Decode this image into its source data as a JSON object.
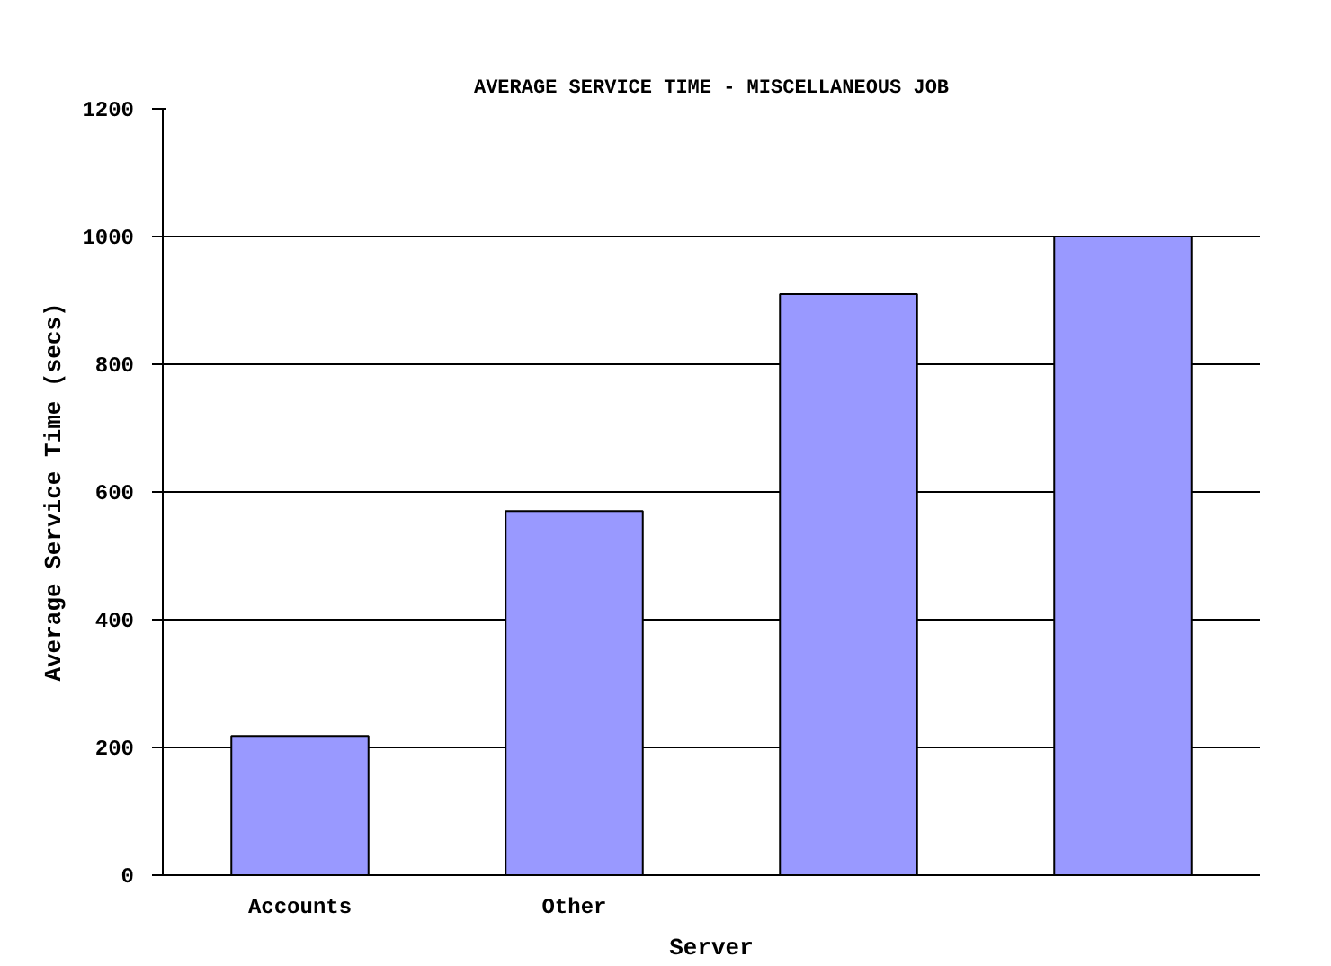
{
  "chart_data": {
    "type": "bar",
    "title": "AVERAGE SERVICE TIME - MISCELLANEOUS JOB",
    "xlabel": "Server",
    "ylabel": "Average Service Time (secs)",
    "categories": [
      "Accounts",
      "Other",
      null,
      null
    ],
    "values": [
      218,
      570,
      910,
      1000
    ],
    "color": "#9999ff",
    "ylim": [
      0,
      1200
    ],
    "yticks": [
      0,
      200,
      400,
      600,
      800,
      1000,
      1200
    ],
    "grid": "y"
  }
}
